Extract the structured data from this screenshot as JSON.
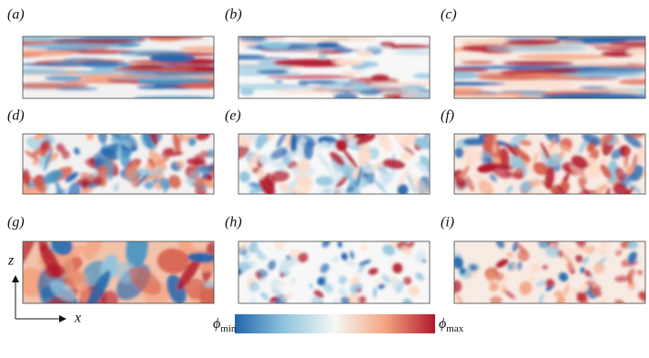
{
  "labels": [
    "(a)",
    "(b)",
    "(c)",
    "(d)",
    "(e)",
    "(f)",
    "(g)",
    "(h)",
    "(i)"
  ],
  "axes": {
    "vertical": "z",
    "horizontal": "x"
  },
  "colorbar": {
    "min": {
      "symbol": "ϕ",
      "sub": "min"
    },
    "max": {
      "symbol": "ϕ",
      "sub": "max"
    }
  }
}
